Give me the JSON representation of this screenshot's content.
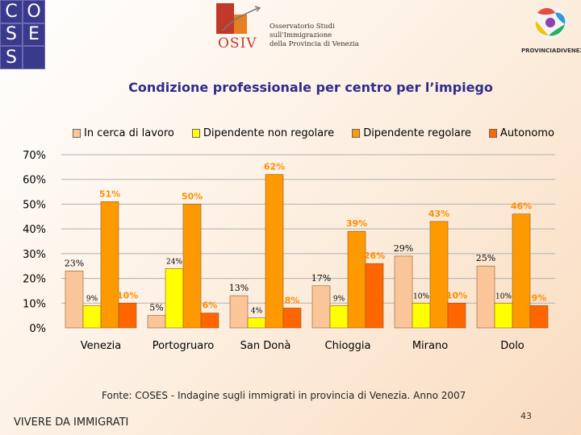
{
  "header": {
    "coses_letters": [
      "C",
      "O",
      "S",
      "E",
      "S",
      ""
    ],
    "osiv_letters": "OSIV",
    "osiv_lines": [
      "Osservatorio Studi",
      "sull'Immigrazione",
      "della Provincia di Venezia"
    ],
    "provincia_label": "PROVINCIADIVENEZIA"
  },
  "colors": {
    "in_cerca": "#fbc59a",
    "dip_non_regolare": "#ffff00",
    "dip_regolare": "#ff9900",
    "autonomo": "#ff6600",
    "title": "#2d2d8c",
    "label_orange": "#ff8c00"
  },
  "chart_data": {
    "type": "bar",
    "title": "Condizione professionale per centro per l’impiego",
    "categories": [
      "Venezia",
      "Portogruaro",
      "San Donà",
      "Chioggia",
      "Mirano",
      "Dolo"
    ],
    "series": [
      {
        "name": "In cerca di lavoro",
        "values": [
          23,
          5,
          13,
          17,
          29,
          25
        ],
        "labels": [
          "23%",
          "5%",
          "13%",
          "17%",
          "29%",
          "25%"
        ]
      },
      {
        "name": "Dipendente non regolare",
        "values": [
          9,
          24,
          4,
          9,
          10,
          10
        ],
        "labels": [
          "9%",
          "24%",
          "4%",
          "9%",
          "10%",
          "10%"
        ]
      },
      {
        "name": "Dipendente regolare",
        "values": [
          51,
          50,
          62,
          39,
          43,
          46
        ],
        "labels": [
          "51%",
          "50%",
          "62%",
          "39%",
          "43%",
          "46%"
        ]
      },
      {
        "name": "Autonomo",
        "values": [
          10,
          6,
          8,
          26,
          10,
          9
        ],
        "labels": [
          "10%",
          "6%",
          "8%",
          "26%",
          "10%",
          "9%"
        ]
      }
    ],
    "yticks": [
      "0%",
      "10%",
      "20%",
      "30%",
      "40%",
      "50%",
      "60%",
      "70%"
    ],
    "ylim": [
      0,
      70
    ],
    "grid": true,
    "legend": "top"
  },
  "source": "Fonte: COSES - Indagine sugli immigrati in provincia di Venezia. Anno 2007",
  "footer": {
    "left": "VIVERE DA IMMIGRATI",
    "page": "43"
  }
}
